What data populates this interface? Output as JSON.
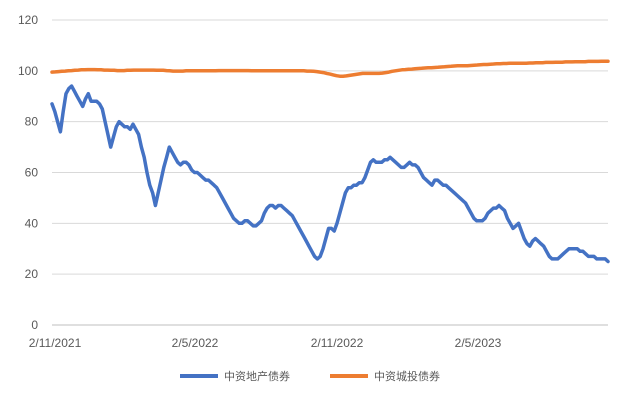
{
  "chart_data": {
    "type": "line",
    "title": "",
    "xlabel": "",
    "ylabel": "",
    "ylim": [
      0,
      120
    ],
    "y_ticks": [
      0,
      20,
      40,
      60,
      80,
      100,
      120
    ],
    "y_tick_labels": [
      "0",
      "20",
      "40",
      "60",
      "80",
      "100",
      "120"
    ],
    "x_tick_labels": [
      "2/11/2021",
      "2/5/2022",
      "2/11/2022",
      "2/5/2023"
    ],
    "grid": "horizontal",
    "legend_position": "bottom",
    "series": [
      {
        "name": "中资地产债券",
        "color": "#4472c4",
        "values": [
          87,
          84,
          80,
          76,
          84,
          91,
          93,
          94,
          92,
          90,
          88,
          86,
          89,
          91,
          88,
          88,
          88,
          87,
          85,
          80,
          75,
          70,
          74,
          78,
          80,
          79,
          78,
          78,
          77,
          79,
          77,
          75,
          70,
          66,
          60,
          55,
          52,
          47,
          52,
          57,
          62,
          66,
          70,
          68,
          66,
          64,
          63,
          64,
          64,
          63,
          61,
          60,
          60,
          59,
          58,
          57,
          57,
          56,
          55,
          54,
          52,
          50,
          48,
          46,
          44,
          42,
          41,
          40,
          40,
          41,
          41,
          40,
          39,
          39,
          40,
          41,
          44,
          46,
          47,
          47,
          46,
          47,
          47,
          46,
          45,
          44,
          43,
          41,
          39,
          37,
          35,
          33,
          31,
          29,
          27,
          26,
          27,
          30,
          34,
          38,
          38,
          37,
          40,
          44,
          48,
          52,
          54,
          54,
          55,
          55,
          56,
          56,
          58,
          61,
          64,
          65,
          64,
          64,
          64,
          65,
          65,
          66,
          65,
          64,
          63,
          62,
          62,
          63,
          64,
          63,
          63,
          62,
          60,
          58,
          57,
          56,
          55,
          57,
          57,
          56,
          55,
          55,
          54,
          53,
          52,
          51,
          50,
          49,
          48,
          46,
          44,
          42,
          41,
          41,
          41,
          42,
          44,
          45,
          46,
          46,
          47,
          46,
          45,
          42,
          40,
          38,
          39,
          40,
          37,
          34,
          32,
          31,
          33,
          34,
          33,
          32,
          31,
          29,
          27,
          26,
          26,
          26,
          27,
          28,
          29,
          30,
          30,
          30,
          30,
          29,
          29,
          28,
          27,
          27,
          27,
          26,
          26,
          26,
          26,
          25
        ]
      },
      {
        "name": "中资城投债券",
        "color": "#ed7d31",
        "values": [
          99.5,
          99.6,
          99.7,
          99.8,
          99.9,
          100,
          100.1,
          100.2,
          100.3,
          100.4,
          100.4,
          100.5,
          100.5,
          100.5,
          100.4,
          100.4,
          100.3,
          100.3,
          100.2,
          100.2,
          100.1,
          100.1,
          100.1,
          100.2,
          100.2,
          100.3,
          100.3,
          100.3,
          100.3,
          100.3,
          100.3,
          100.3,
          100.2,
          100.2,
          100.2,
          100.1,
          100,
          99.9,
          99.9,
          99.9,
          99.9,
          100,
          100,
          100,
          100,
          100,
          100,
          100,
          100,
          100,
          100,
          100.1,
          100.1,
          100.1,
          100.1,
          100.1,
          100.1,
          100.1,
          100.1,
          100.1,
          100.1,
          100,
          100,
          100,
          100,
          100,
          100,
          100,
          100,
          100,
          100,
          100,
          100,
          100,
          100,
          100,
          100,
          100,
          99.9,
          99.9,
          99.8,
          99.7,
          99.5,
          99.3,
          99,
          98.7,
          98.4,
          98.1,
          97.9,
          97.9,
          98,
          98.2,
          98.4,
          98.6,
          98.8,
          99,
          99,
          99,
          99,
          99,
          99,
          99.1,
          99.3,
          99.5,
          99.8,
          100,
          100.2,
          100.4,
          100.5,
          100.6,
          100.7,
          100.8,
          100.9,
          101,
          101.1,
          101.2,
          101.2,
          101.3,
          101.4,
          101.5,
          101.6,
          101.7,
          101.8,
          101.9,
          102,
          102,
          102,
          102,
          102.1,
          102.2,
          102.3,
          102.4,
          102.5,
          102.5,
          102.6,
          102.7,
          102.8,
          102.8,
          102.9,
          102.9,
          103,
          103,
          103,
          103,
          103,
          103,
          103.1,
          103.1,
          103.2,
          103.2,
          103.2,
          103.3,
          103.3,
          103.3,
          103.4,
          103.4,
          103.4,
          103.5,
          103.5,
          103.5,
          103.6,
          103.6,
          103.6,
          103.6,
          103.7,
          103.7,
          103.7,
          103.7,
          103.8,
          103.8,
          103.8
        ]
      }
    ]
  }
}
